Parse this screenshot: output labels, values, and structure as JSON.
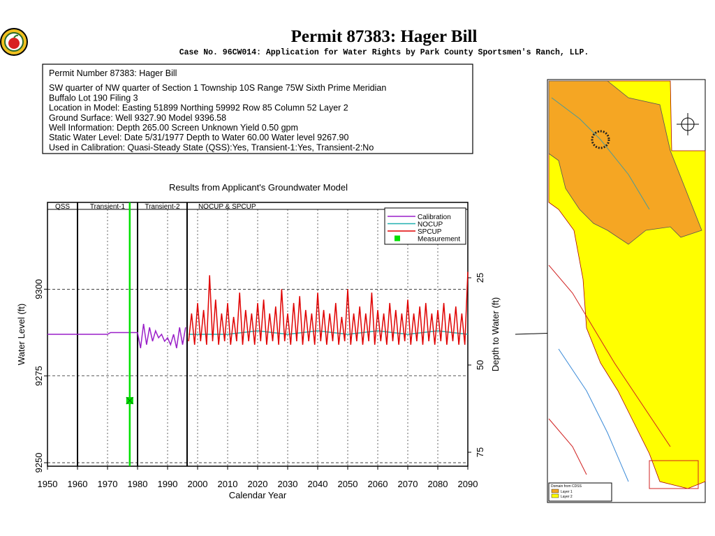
{
  "chart_data": {
    "type": "line",
    "title": "Permit 87383:  Hager Bill",
    "subtitle": "Case No. 96CW014: Application for Water Rights by Park County Sportsmen's Ranch, LLP.",
    "info_box": [
      "Permit Number 87383: Hager Bill",
      "SW quarter of NW quarter of Section 1 Township 10S Range 75W Sixth Prime Meridian",
      "Buffalo Lot 190 Filing 3",
      "Location in Model: Easting 51899 Northing  59992 Row   85 Column 52 Layer 2",
      "Ground Surface: Well   9327.90 Model  9396.58",
      "Well Information: Depth    265.00 Screen Unknown Yield       0.50 gpm",
      "Static Water Level: Date   5/31/1977 Depth to Water     60.00 Water level   9267.90",
      "Used in Calibration: Quasi-Steady State (QSS):Yes, Transient-1:Yes, Transient-2:No"
    ],
    "chart_title": "Results from Applicant's Groundwater Model",
    "x_label": "Calendar Year",
    "y_label": "Water Level (ft)",
    "y2_label": "Depth to Water (ft)",
    "xlim": [
      1950,
      2090
    ],
    "xticks": [
      1950,
      1960,
      1970,
      1980,
      1990,
      2000,
      2010,
      2020,
      2030,
      2040,
      2050,
      2060,
      2070,
      2080,
      2090
    ],
    "ylim": [
      9249,
      9325
    ],
    "yticks": [
      9250,
      9275,
      9300
    ],
    "y2lim": [
      79,
      3.4
    ],
    "y2ticks": [
      25,
      50,
      75
    ],
    "grid": true,
    "periods": [
      {
        "label": "QSS",
        "start": 1950,
        "end": 1960
      },
      {
        "label": "Transient-1",
        "start": 1960,
        "end": 1980
      },
      {
        "label": "Transient-2",
        "start": 1980,
        "end": 1996.5
      },
      {
        "label": "NOCUP  &  SPCUP",
        "start": 1996.5,
        "end": 2090
      }
    ],
    "series": [
      {
        "name": "Calibration",
        "color": "#9a1fc8",
        "x": [
          1950,
          1970,
          1971,
          1980,
          1981,
          1982,
          1983,
          1984,
          1985,
          1986,
          1987,
          1988,
          1989,
          1990,
          1991,
          1992,
          1993,
          1994,
          1995,
          1996
        ],
        "values": [
          9287,
          9287,
          9287.5,
          9287.5,
          9283,
          9290,
          9284,
          9289,
          9285,
          9288,
          9286,
          9287,
          9285,
          9286,
          9284,
          9287,
          9283,
          9289,
          9284,
          9289
        ]
      },
      {
        "name": "NOCUP",
        "color": "#20b0b0",
        "x": [
          1997,
          2010,
          2020,
          2030,
          2040,
          2050,
          2060,
          2070,
          2080,
          2090
        ],
        "values": [
          9287,
          9287,
          9288,
          9287,
          9288,
          9287,
          9288,
          9287,
          9288,
          9287
        ]
      },
      {
        "name": "SPCUP",
        "color": "#e00000",
        "x": [
          1997,
          1998,
          1999,
          2000,
          2001,
          2002,
          2003,
          2004,
          2005,
          2006,
          2007,
          2008,
          2009,
          2010,
          2011,
          2012,
          2013,
          2014,
          2015,
          2016,
          2017,
          2018,
          2019,
          2020,
          2021,
          2022,
          2023,
          2024,
          2025,
          2026,
          2027,
          2028,
          2029,
          2030,
          2031,
          2032,
          2033,
          2034,
          2035,
          2036,
          2037,
          2038,
          2039,
          2040,
          2041,
          2042,
          2043,
          2044,
          2045,
          2046,
          2047,
          2048,
          2049,
          2050,
          2051,
          2052,
          2053,
          2054,
          2055,
          2056,
          2057,
          2058,
          2059,
          2060,
          2061,
          2062,
          2063,
          2064,
          2065,
          2066,
          2067,
          2068,
          2069,
          2070,
          2071,
          2072,
          2073,
          2074,
          2075,
          2076,
          2077,
          2078,
          2079,
          2080,
          2081,
          2082,
          2083,
          2084,
          2085,
          2086,
          2087,
          2088,
          2089,
          2090
        ],
        "values": [
          9285,
          9293,
          9284,
          9296,
          9285,
          9294,
          9284,
          9304,
          9285,
          9297,
          9284,
          9293,
          9285,
          9296,
          9284,
          9292,
          9285,
          9299,
          9284,
          9294,
          9285,
          9293,
          9284,
          9296,
          9285,
          9297,
          9284,
          9293,
          9285,
          9295,
          9284,
          9300,
          9285,
          9293,
          9284,
          9296,
          9285,
          9298,
          9284,
          9294,
          9285,
          9293,
          9284,
          9299,
          9285,
          9294,
          9284,
          9293,
          9285,
          9296,
          9284,
          9292,
          9285,
          9300,
          9284,
          9293,
          9285,
          9295,
          9284,
          9293,
          9285,
          9299,
          9284,
          9294,
          9285,
          9293,
          9284,
          9296,
          9285,
          9294,
          9284,
          9293,
          9285,
          9297,
          9284,
          9293,
          9285,
          9295,
          9284,
          9296,
          9285,
          9293,
          9284,
          9294,
          9285,
          9296,
          9284,
          9293,
          9285,
          9295,
          9284,
          9293,
          9284,
          9305
        ]
      },
      {
        "name": "Measurement",
        "color": "#00e000",
        "marker": true,
        "x": [
          1977.4
        ],
        "values": [
          9267.9
        ]
      }
    ]
  },
  "map_legend": {
    "title": "Domain from CDSS",
    "items": [
      "Layer 1",
      "Layer 2"
    ],
    "colors": [
      "#f5a623",
      "#ffff00"
    ]
  }
}
